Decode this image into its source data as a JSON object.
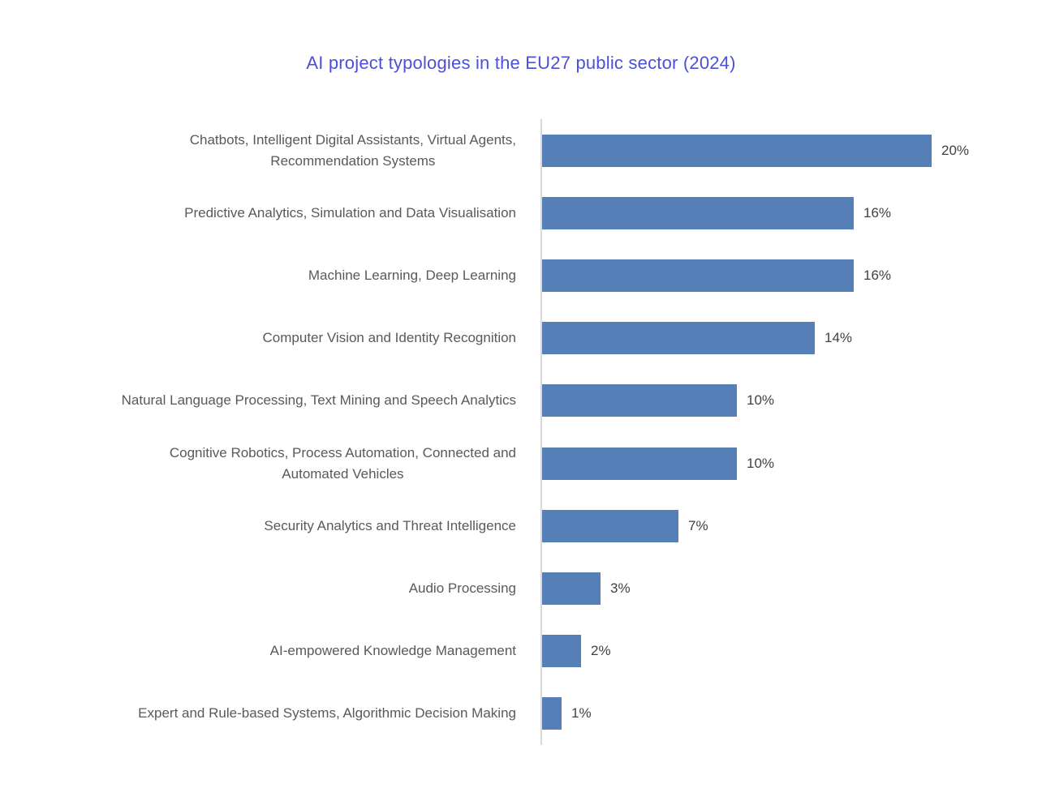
{
  "title": "AI project typologies in the EU27 public sector (2024)",
  "colors": {
    "bar": "#557FB7",
    "axis_line": "#D9D9D9",
    "title": "#4A50D9",
    "category_label": "#595959",
    "value_label": "#404040",
    "background": "#FFFFFF"
  },
  "chart_data": {
    "type": "bar",
    "orientation": "horizontal",
    "title": "AI project typologies in the EU27 public sector (2024)",
    "categories": [
      "Chatbots, Intelligent Digital Assistants, Virtual Agents,\nRecommendation Systems",
      "Predictive Analytics, Simulation and Data Visualisation",
      "Machine Learning, Deep Learning",
      "Computer Vision and Identity Recognition",
      "Natural Language Processing, Text Mining and Speech Analytics",
      "Cognitive Robotics, Process Automation, Connected and\nAutomated Vehicles",
      "Security Analytics and Threat Intelligence",
      "Audio Processing",
      "AI-empowered Knowledge Management",
      "Expert and Rule-based Systems, Algorithmic Decision Making"
    ],
    "values": [
      20,
      16,
      16,
      14,
      10,
      10,
      7,
      3,
      2,
      1
    ],
    "value_labels": [
      "20%",
      "16%",
      "16%",
      "14%",
      "10%",
      "10%",
      "7%",
      "3%",
      "2%",
      "1%"
    ],
    "unit": "%",
    "xlim": [
      0,
      20
    ],
    "grid": false,
    "legend": "none",
    "value_labels_position": "outside-end",
    "category_axis_side": "left"
  }
}
